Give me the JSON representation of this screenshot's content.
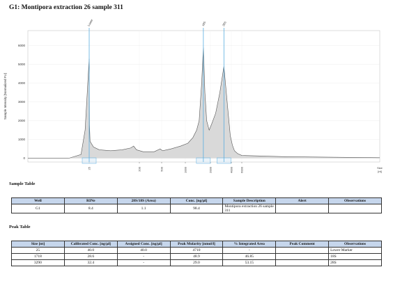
{
  "title": "G1: Montipora extraction 26 sample 311",
  "chart_data": {
    "type": "area",
    "ylabel": "Sample Intensity [Normalized FU]",
    "xlabel": "Size\n[nt]",
    "x": [
      10,
      20,
      23,
      24,
      25,
      26,
      28,
      40,
      60,
      100,
      140,
      170,
      180,
      190,
      250,
      400,
      480,
      520,
      700,
      900,
      1100,
      1300,
      1450,
      1550,
      1650,
      1718,
      1780,
      1850,
      1950,
      2100,
      2500,
      2900,
      3290,
      3600,
      3900,
      4200,
      4600,
      5200,
      6000,
      7000,
      9000
    ],
    "values": [
      0,
      0,
      200,
      1500,
      5300,
      1800,
      900,
      600,
      450,
      400,
      450,
      550,
      650,
      450,
      350,
      350,
      500,
      400,
      500,
      650,
      800,
      1100,
      1500,
      2000,
      4000,
      5900,
      3500,
      2000,
      1500,
      1800,
      2400,
      3500,
      4900,
      3000,
      1200,
      700,
      400,
      250,
      150,
      80,
      30
    ],
    "color": "#d9d9d9",
    "xlim": [
      10,
      9000
    ],
    "xticks": [
      25,
      200,
      500,
      1000,
      2000,
      4000,
      6000
    ],
    "ylim": [
      -200,
      6800
    ],
    "yticks": [
      0,
      1000,
      2000,
      3000,
      4000,
      5000,
      6000
    ],
    "grid": true,
    "markers": [
      {
        "label": "Lower",
        "x": 25
      },
      {
        "label": "18S",
        "x": 1718
      },
      {
        "label": "28S",
        "x": 3290
      }
    ],
    "marker_color": "#5aaee0"
  },
  "sample_table": {
    "title": "Sample Table",
    "header": [
      "Well",
      "RINe",
      "28S/18S (Area)",
      "Conc. [ng/µl]",
      "Sample Description",
      "Alert",
      "Observations"
    ],
    "rows": [
      [
        "G1",
        "8.4",
        "1.1",
        "98.4",
        "Montipora extraction 26 sample 311",
        null,
        null
      ]
    ]
  },
  "peak_table": {
    "title": "Peak Table",
    "header": [
      "Size [nt]",
      "Calibrated Conc. [ng/µl]",
      "Assigned Conc. [ng/µl]",
      "Peak Molarity [nmol/l]",
      "% Integrated Area",
      "Peak Comment",
      "Observations"
    ],
    "rows": [
      [
        "25",
        "40.0",
        "40.0",
        "4710",
        "-",
        null,
        "Lower Marker"
      ],
      [
        "1718",
        "28.6",
        "-",
        "48.9",
        "46.85",
        null,
        "18S"
      ],
      [
        "3290",
        "32.4",
        "-",
        "29.0",
        "53.15",
        null,
        "28S"
      ]
    ]
  }
}
